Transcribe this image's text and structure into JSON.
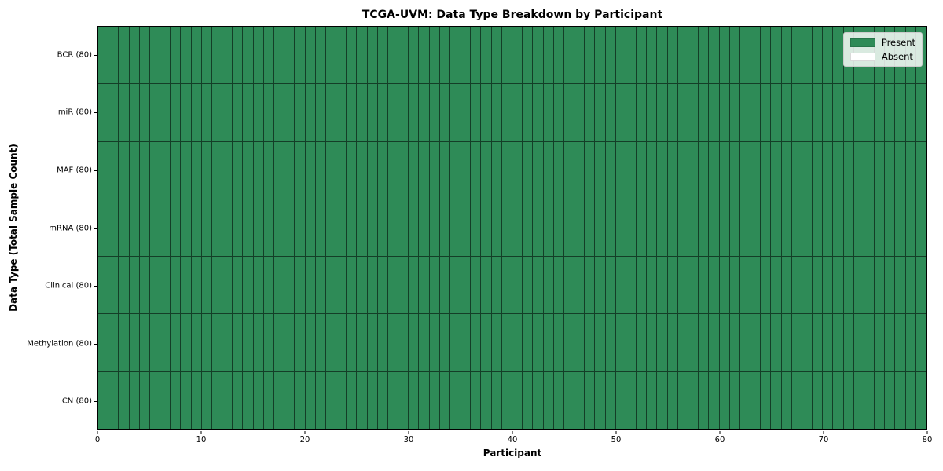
{
  "figure": {
    "title": "TCGA-UVM: Data Type Breakdown by Participant",
    "xlabel": "Participant",
    "ylabel": "Data Type (Total Sample Count)"
  },
  "legend": {
    "items": [
      {
        "key": "present",
        "label": "Present",
        "color": "#2e8b57"
      },
      {
        "key": "absent",
        "label": "Absent",
        "color": "#ffffff"
      }
    ],
    "position": "upper right"
  },
  "chart_data": {
    "type": "heatmap",
    "title": "TCGA-UVM: Data Type Breakdown by Participant",
    "xlabel": "Participant",
    "ylabel": "Data Type (Total Sample Count)",
    "xlim": [
      0,
      80
    ],
    "x_ticks": [
      0,
      10,
      20,
      30,
      40,
      50,
      60,
      70,
      80
    ],
    "n_participants": 80,
    "grid": false,
    "legend_position": "upper right",
    "cell_colors": {
      "present": "#2e8b57",
      "absent": "#ffffff"
    },
    "rows": [
      {
        "label": "BCR (80)",
        "total": 80,
        "present": 80,
        "absent": 0
      },
      {
        "label": "miR (80)",
        "total": 80,
        "present": 80,
        "absent": 0
      },
      {
        "label": "MAF (80)",
        "total": 80,
        "present": 80,
        "absent": 0
      },
      {
        "label": "mRNA (80)",
        "total": 80,
        "present": 80,
        "absent": 0
      },
      {
        "label": "Clinical (80)",
        "total": 80,
        "present": 80,
        "absent": 0
      },
      {
        "label": "Methylation (80)",
        "total": 80,
        "present": 80,
        "absent": 0
      },
      {
        "label": "CN (80)",
        "total": 80,
        "present": 80,
        "absent": 0
      }
    ]
  }
}
